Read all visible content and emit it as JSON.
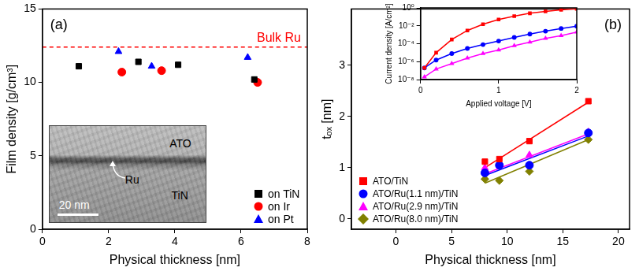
{
  "chart_data": [
    {
      "type": "scatter",
      "title": "(a)",
      "x_label": "Physical thickness [nm]",
      "y_label": "Film density [g/cm³]",
      "xlim": [
        0,
        8
      ],
      "xticks": [
        0,
        2,
        4,
        6,
        8
      ],
      "ylim": [
        0,
        15
      ],
      "yticks": [
        0,
        5,
        10,
        15
      ],
      "grid": false,
      "legend": "lower right",
      "reference_line": {
        "label": "Bulk Ru",
        "value": 12.4,
        "color": "#ff0000",
        "line_style": "dashed"
      },
      "annotations": {
        "layers": [
          "ATO",
          "Ru",
          "TiN"
        ],
        "scale_bar": "20 nm"
      },
      "series": [
        {
          "name": "on TiN",
          "color": "#000000",
          "marker": "square",
          "x": [
            1.1,
            2.9,
            4.1,
            6.4
          ],
          "values": [
            11.1,
            11.4,
            11.2,
            10.2
          ]
        },
        {
          "name": "on Ir",
          "color": "#ff0000",
          "marker": "circle",
          "x": [
            2.4,
            3.6,
            6.5
          ],
          "values": [
            10.7,
            10.8,
            10.0
          ]
        },
        {
          "name": "on Pt",
          "color": "#0000ff",
          "marker": "triangle",
          "x": [
            2.3,
            3.3,
            6.2
          ],
          "values": [
            12.1,
            11.1,
            11.7
          ]
        }
      ]
    },
    {
      "type": "scatter",
      "title": "(b)",
      "x_label": "Physical thickness [nm]",
      "y_label": "tₒₓ [nm]",
      "xlim": [
        -4,
        21
      ],
      "xticks": [
        0,
        5,
        10,
        15,
        20
      ],
      "ylim": [
        -0.2,
        4.1
      ],
      "yticks": [
        0,
        1,
        2,
        3
      ],
      "grid": false,
      "legend": "lower left",
      "series": [
        {
          "name": "ATO/TiN",
          "color": "#ff0000",
          "marker": "square",
          "x": [
            8,
            9.3,
            12,
            17.3
          ],
          "values": [
            1.12,
            1.17,
            1.52,
            2.3
          ],
          "fit": {
            "x": [
              8,
              17.3
            ],
            "values": [
              1.0,
              2.28
            ]
          }
        },
        {
          "name": "ATO/Ru(1.1 nm)/TiN",
          "color": "#0000ff",
          "marker": "circle",
          "x": [
            8,
            9.3,
            12,
            17.3
          ],
          "values": [
            0.9,
            1.05,
            1.05,
            1.68
          ],
          "fit": {
            "x": [
              8,
              17.3
            ],
            "values": [
              0.85,
              1.62
            ]
          }
        },
        {
          "name": "ATO/Ru(2.9 nm)/TiN",
          "color": "#ff00ff",
          "marker": "triangle",
          "x": [
            8,
            9.3,
            12,
            17.3
          ],
          "values": [
            1.0,
            1.1,
            1.25,
            1.7
          ],
          "fit": {
            "x": [
              8,
              17.3
            ],
            "values": [
              0.88,
              1.66
            ]
          }
        },
        {
          "name": "ATO/Ru(8.0 nm)/TiN",
          "color": "#808000",
          "marker": "diamond",
          "x": [
            8,
            9.3,
            12,
            17.3
          ],
          "values": [
            0.78,
            0.75,
            0.93,
            1.55
          ],
          "fit": {
            "x": [
              8,
              17.3
            ],
            "values": [
              0.7,
              1.55
            ]
          }
        }
      ]
    },
    {
      "type": "line",
      "log": "y",
      "x_label": "Applied voltage [V]",
      "y_label": "Current density [A/cm²]",
      "xlim": [
        0,
        2
      ],
      "xticks": [
        0,
        1,
        2
      ],
      "ylim": [
        1e-08,
        1
      ],
      "yticks": [
        {
          "value": 1e-08,
          "label": "10⁻⁸"
        },
        {
          "value": 1e-06,
          "label": "10⁻⁶"
        },
        {
          "value": 0.0001,
          "label": "10⁻⁴"
        },
        {
          "value": 0.01,
          "label": "10⁻²"
        },
        {
          "value": 1,
          "label": "10⁰"
        }
      ],
      "grid": false,
      "series": [
        {
          "color": "#ff0000",
          "marker": "square",
          "x": [
            0.05,
            0.2,
            0.4,
            0.6,
            0.8,
            1.0,
            1.2,
            1.4,
            1.6,
            1.8,
            2.0
          ],
          "values": [
            2e-07,
            1e-05,
            0.0003,
            0.003,
            0.015,
            0.05,
            0.12,
            0.25,
            0.4,
            0.6,
            0.8
          ]
        },
        {
          "color": "#0000ff",
          "marker": "circle",
          "x": [
            0.05,
            0.2,
            0.4,
            0.6,
            0.8,
            1.0,
            1.2,
            1.4,
            1.6,
            1.8,
            2.0
          ],
          "values": [
            2e-07,
            1.5e-06,
            8e-06,
            3e-05,
            8e-05,
            0.0002,
            0.0005,
            0.0012,
            0.0025,
            0.005,
            0.009
          ]
        },
        {
          "color": "#ff00ff",
          "marker": "triangle",
          "x": [
            0.05,
            0.2,
            0.4,
            0.6,
            0.8,
            1.0,
            1.2,
            1.4,
            1.6,
            1.8,
            2.0
          ],
          "values": [
            2e-08,
            1.5e-07,
            6e-07,
            2.5e-06,
            8e-06,
            2e-05,
            6e-05,
            0.00015,
            0.0004,
            0.0008,
            0.002
          ]
        }
      ]
    }
  ]
}
